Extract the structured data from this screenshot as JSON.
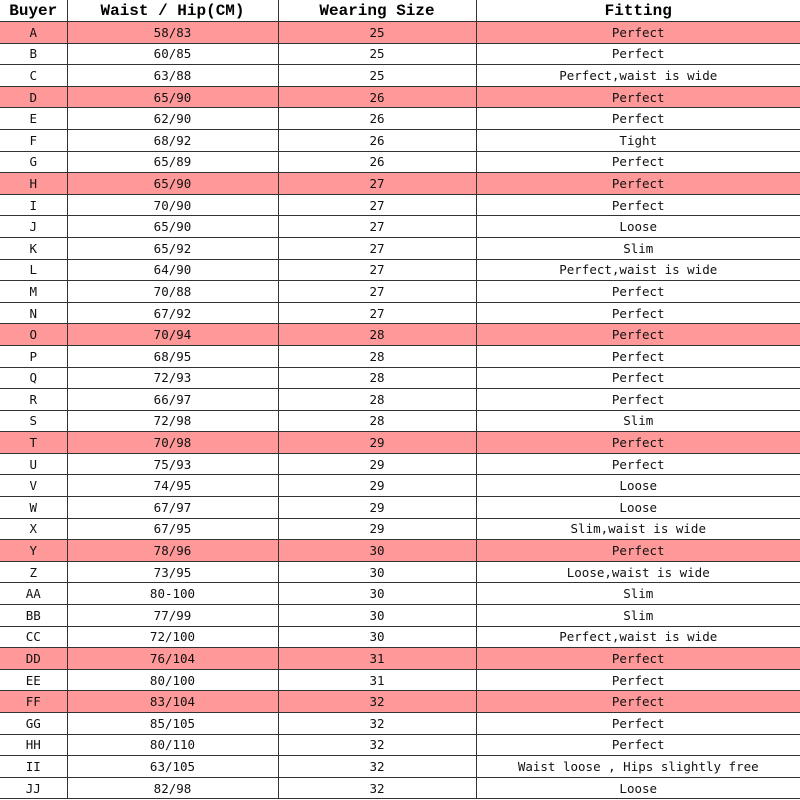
{
  "table": {
    "headers": [
      "Buyer",
      "Waist / Hip(CM)",
      "Wearing Size",
      "Fitting"
    ],
    "highlight_color": "#ff9999",
    "rows": [
      {
        "buyer": "A",
        "waist_hip": "58/83",
        "size": "25",
        "fitting": "Perfect",
        "highlighted": true
      },
      {
        "buyer": "B",
        "waist_hip": "60/85",
        "size": "25",
        "fitting": "Perfect",
        "highlighted": false
      },
      {
        "buyer": "C",
        "waist_hip": "63/88",
        "size": "25",
        "fitting": "Perfect,waist is wide",
        "highlighted": false
      },
      {
        "buyer": "D",
        "waist_hip": "65/90",
        "size": "26",
        "fitting": "Perfect",
        "highlighted": true
      },
      {
        "buyer": "E",
        "waist_hip": "62/90",
        "size": "26",
        "fitting": "Perfect",
        "highlighted": false
      },
      {
        "buyer": "F",
        "waist_hip": "68/92",
        "size": "26",
        "fitting": "Tight",
        "highlighted": false
      },
      {
        "buyer": "G",
        "waist_hip": "65/89",
        "size": "26",
        "fitting": "Perfect",
        "highlighted": false
      },
      {
        "buyer": "H",
        "waist_hip": "65/90",
        "size": "27",
        "fitting": "Perfect",
        "highlighted": true
      },
      {
        "buyer": "I",
        "waist_hip": "70/90",
        "size": "27",
        "fitting": "Perfect",
        "highlighted": false
      },
      {
        "buyer": "J",
        "waist_hip": "65/90",
        "size": "27",
        "fitting": "Loose",
        "highlighted": false
      },
      {
        "buyer": "K",
        "waist_hip": "65/92",
        "size": "27",
        "fitting": "Slim",
        "highlighted": false
      },
      {
        "buyer": "L",
        "waist_hip": "64/90",
        "size": "27",
        "fitting": "Perfect,waist is wide",
        "highlighted": false
      },
      {
        "buyer": "M",
        "waist_hip": "70/88",
        "size": "27",
        "fitting": "Perfect",
        "highlighted": false
      },
      {
        "buyer": "N",
        "waist_hip": "67/92",
        "size": "27",
        "fitting": "Perfect",
        "highlighted": false
      },
      {
        "buyer": "O",
        "waist_hip": "70/94",
        "size": "28",
        "fitting": "Perfect",
        "highlighted": true
      },
      {
        "buyer": "P",
        "waist_hip": "68/95",
        "size": "28",
        "fitting": "Perfect",
        "highlighted": false
      },
      {
        "buyer": "Q",
        "waist_hip": "72/93",
        "size": "28",
        "fitting": "Perfect",
        "highlighted": false
      },
      {
        "buyer": "R",
        "waist_hip": "66/97",
        "size": "28",
        "fitting": "Perfect",
        "highlighted": false
      },
      {
        "buyer": "S",
        "waist_hip": "72/98",
        "size": "28",
        "fitting": "Slim",
        "highlighted": false
      },
      {
        "buyer": "T",
        "waist_hip": "70/98",
        "size": "29",
        "fitting": "Perfect",
        "highlighted": true
      },
      {
        "buyer": "U",
        "waist_hip": "75/93",
        "size": "29",
        "fitting": "Perfect",
        "highlighted": false
      },
      {
        "buyer": "V",
        "waist_hip": "74/95",
        "size": "29",
        "fitting": "Loose",
        "highlighted": false
      },
      {
        "buyer": "W",
        "waist_hip": "67/97",
        "size": "29",
        "fitting": "Loose",
        "highlighted": false
      },
      {
        "buyer": "X",
        "waist_hip": "67/95",
        "size": "29",
        "fitting": "Slim,waist is wide",
        "highlighted": false
      },
      {
        "buyer": "Y",
        "waist_hip": "78/96",
        "size": "30",
        "fitting": "Perfect",
        "highlighted": true
      },
      {
        "buyer": "Z",
        "waist_hip": "73/95",
        "size": "30",
        "fitting": "Loose,waist is wide",
        "highlighted": false
      },
      {
        "buyer": "AA",
        "waist_hip": "80-100",
        "size": "30",
        "fitting": "Slim",
        "highlighted": false
      },
      {
        "buyer": "BB",
        "waist_hip": "77/99",
        "size": "30",
        "fitting": "Slim",
        "highlighted": false
      },
      {
        "buyer": "CC",
        "waist_hip": "72/100",
        "size": "30",
        "fitting": "Perfect,waist is wide",
        "highlighted": false
      },
      {
        "buyer": "DD",
        "waist_hip": "76/104",
        "size": "31",
        "fitting": "Perfect",
        "highlighted": true
      },
      {
        "buyer": "EE",
        "waist_hip": "80/100",
        "size": "31",
        "fitting": "Perfect",
        "highlighted": false
      },
      {
        "buyer": "FF",
        "waist_hip": "83/104",
        "size": "32",
        "fitting": "Perfect",
        "highlighted": true
      },
      {
        "buyer": "GG",
        "waist_hip": "85/105",
        "size": "32",
        "fitting": "Perfect",
        "highlighted": false
      },
      {
        "buyer": "HH",
        "waist_hip": "80/110",
        "size": "32",
        "fitting": "Perfect",
        "highlighted": false
      },
      {
        "buyer": "II",
        "waist_hip": "63/105",
        "size": "32",
        "fitting": "Waist loose , Hips slightly free",
        "highlighted": false
      },
      {
        "buyer": "JJ",
        "waist_hip": "82/98",
        "size": "32",
        "fitting": "Loose",
        "highlighted": false
      }
    ]
  }
}
